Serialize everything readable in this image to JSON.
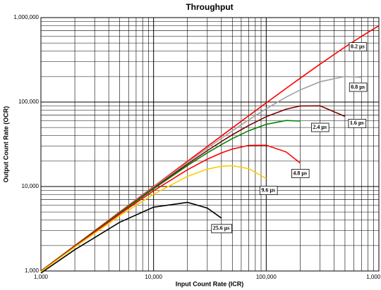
{
  "chart_data": {
    "type": "line",
    "title": "Throughput",
    "x_label": "Input Count Rate (ICR)",
    "y_label": "Output Count Rate (OCR)",
    "xscale": "log",
    "yscale": "log",
    "grid": true,
    "xlim": [
      1000,
      1000000
    ],
    "ylim": [
      1000,
      1000000
    ],
    "xticks": [
      {
        "value": 1000,
        "label": "1,000"
      },
      {
        "value": 10000,
        "label": "10,000"
      },
      {
        "value": 100000,
        "label": "100,000"
      },
      {
        "value": 1000000,
        "label": "1,000,000"
      }
    ],
    "yticks": [
      {
        "value": 1000,
        "label": "1,000"
      },
      {
        "value": 10000,
        "label": "10,000"
      },
      {
        "value": 100000,
        "label": "100,000"
      },
      {
        "value": 1000000,
        "label": "1,000,000"
      }
    ],
    "x": [
      1000,
      2000,
      5000,
      10000,
      20000,
      30000,
      40000,
      50000,
      70000,
      100000,
      150000,
      200000,
      300000,
      500000,
      700000,
      1000000
    ],
    "series": [
      {
        "name": "0.2 µs",
        "color": "#ff0000",
        "values": [
          1000,
          1999,
          4994,
          9978,
          19910,
          29800,
          39650,
          49450,
          68920,
          97800,
          145100,
          191300,
          280700,
          447400,
          599200,
          800700
        ]
      },
      {
        "name": "0.8 µs",
        "color": "#a0a0a0",
        "values": [
          998,
          1993,
          4955,
          9820,
          19290,
          28410,
          37200,
          45650,
          61630,
          83380,
          114200,
          139000,
          173800,
          201400,
          196000,
          null
        ]
      },
      {
        "name": "1.6 µs",
        "color": "#800000",
        "values": [
          996,
          1984,
          4901,
          9608,
          18460,
          26610,
          34090,
          40940,
          52900,
          67030,
          82320,
          89870,
          90360,
          67670,
          null,
          null
        ]
      },
      {
        "name": "2.4 µs",
        "color": "#008000",
        "values": [
          994,
          1976,
          4851,
          9412,
          17720,
          25010,
          31390,
          36930,
          45800,
          54550,
          60440,
          59520,
          null,
          null,
          null,
          null
        ]
      },
      {
        "name": "4.8 µs",
        "color": "#ff0000",
        "values": [
          988,
          1953,
          4714,
          8890,
          15800,
          21080,
          24980,
          27770,
          30720,
          30840,
          25680,
          19020,
          null,
          null,
          null,
          null
        ]
      },
      {
        "name": "9.6 µs",
        "color": "#ffcc00",
        "values": [
          979,
          1918,
          4505,
          8120,
          13180,
          16050,
          17380,
          17640,
          16280,
          12450,
          null,
          null,
          null,
          null,
          null,
          null
        ]
      },
      {
        "name": "25.6 µs",
        "color": "#000000",
        "values": [
          945,
          1788,
          3775,
          5700,
          6500,
          5560,
          4230,
          null,
          null,
          null,
          null,
          null,
          null,
          null,
          null,
          null
        ]
      }
    ]
  }
}
